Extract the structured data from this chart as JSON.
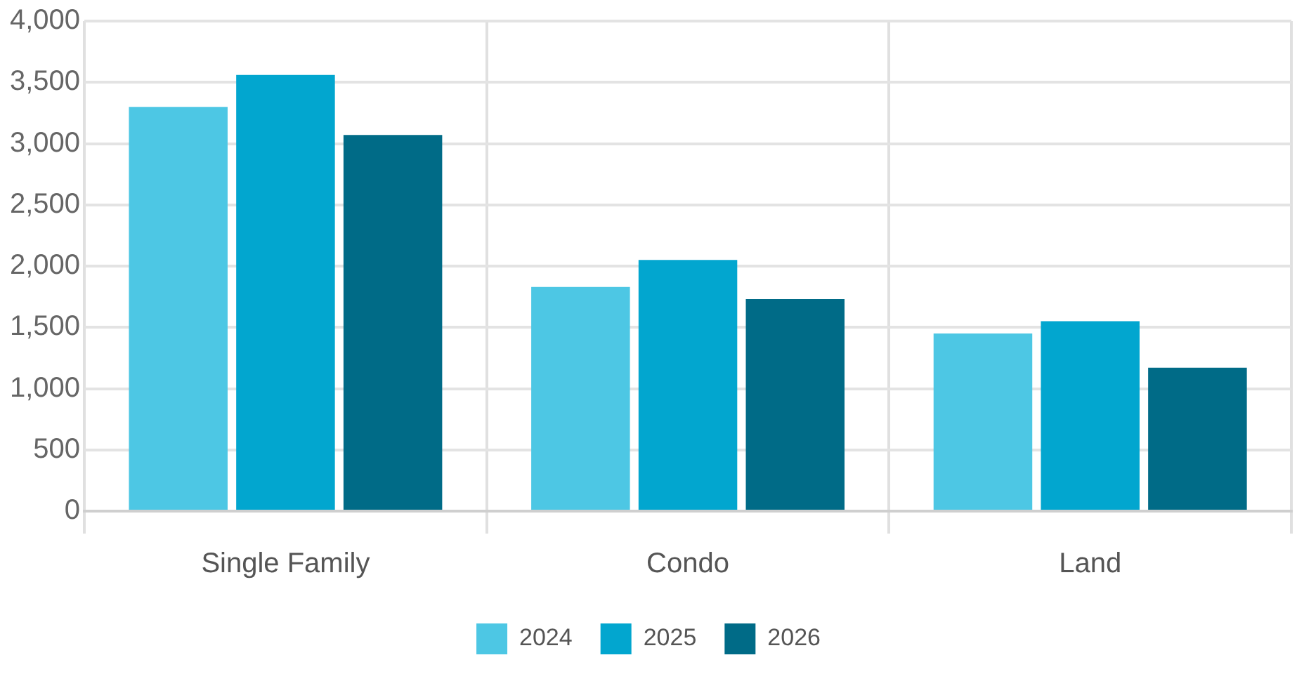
{
  "chart_data": {
    "type": "bar",
    "categories": [
      "Single Family",
      "Condo",
      "Land"
    ],
    "series": [
      {
        "name": "2024",
        "color": "#4dc7e4",
        "values": [
          3300,
          1830,
          1450
        ]
      },
      {
        "name": "2025",
        "color": "#02a6cf",
        "values": [
          3560,
          2050,
          1550
        ]
      },
      {
        "name": "2026",
        "color": "#006b87",
        "values": [
          3070,
          1730,
          1170
        ]
      }
    ],
    "ylim": [
      0,
      4000
    ],
    "yticks": [
      {
        "value": 0,
        "label": "0"
      },
      {
        "value": 500,
        "label": "500"
      },
      {
        "value": 1000,
        "label": "1,000"
      },
      {
        "value": 1500,
        "label": "1,500"
      },
      {
        "value": 2000,
        "label": "2,000"
      },
      {
        "value": 2500,
        "label": "2,500"
      },
      {
        "value": 3000,
        "label": "3,000"
      },
      {
        "value": 3500,
        "label": "3,500"
      },
      {
        "value": 4000,
        "label": "4,000"
      }
    ],
    "grid": true,
    "legend": "bottom"
  }
}
